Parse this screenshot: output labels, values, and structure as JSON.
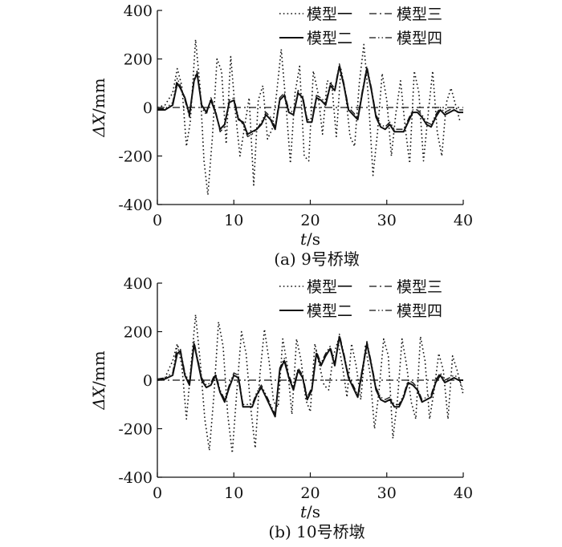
{
  "chart_data": [
    {
      "type": "line",
      "caption": "(a) 9号桥墩",
      "xlabel_var": "t",
      "xlabel_unit": "/s",
      "ylabel_var": "ΔX",
      "ylabel_unit": "/mm",
      "xlim": [
        0,
        40
      ],
      "ylim": [
        -400,
        400
      ],
      "xticks": [
        0,
        10,
        20,
        30,
        40
      ],
      "yticks": [
        -400,
        -200,
        0,
        200,
        400
      ],
      "grid": false,
      "legend_position": "top-right",
      "series": [
        {
          "name": "模型一",
          "style": "dotted",
          "x": [
            0,
            1,
            2,
            2.6,
            3.2,
            3.8,
            4.3,
            5,
            5.6,
            6.1,
            6.6,
            7.2,
            7.8,
            8.4,
            9,
            9.6,
            10.2,
            10.8,
            11.4,
            12,
            12.6,
            13.2,
            13.8,
            14.4,
            15,
            15.6,
            16.2,
            16.8,
            17.4,
            18,
            18.6,
            19.2,
            19.8,
            20.4,
            21,
            21.6,
            22.2,
            22.8,
            23.4,
            24,
            24.6,
            25.2,
            25.8,
            26.4,
            27,
            27.6,
            28.2,
            28.8,
            29.4,
            30,
            30.6,
            31.2,
            31.8,
            32.4,
            33,
            33.6,
            34.2,
            34.8,
            35.4,
            36,
            36.6,
            37.2,
            37.8,
            38.4,
            39,
            39.6
          ],
          "y": [
            0,
            10,
            60,
            160,
            90,
            -160,
            -60,
            280,
            80,
            -220,
            -360,
            -120,
            200,
            150,
            -150,
            210,
            -20,
            -200,
            -80,
            40,
            -320,
            30,
            90,
            -130,
            -90,
            60,
            240,
            20,
            -230,
            60,
            170,
            -200,
            -220,
            150,
            60,
            -110,
            110,
            100,
            -120,
            160,
            60,
            -120,
            -160,
            100,
            260,
            40,
            -280,
            -100,
            140,
            30,
            -200,
            -20,
            110,
            -80,
            -230,
            150,
            60,
            -220,
            -30,
            150,
            -100,
            -200,
            20,
            80,
            10,
            -60
          ]
        },
        {
          "name": "模型二",
          "style": "solid",
          "x": [
            0,
            1,
            2,
            2.6,
            3,
            3.6,
            4.2,
            4.8,
            5.2,
            5.8,
            6.4,
            7,
            7.6,
            8.2,
            8.8,
            9.4,
            10,
            10.6,
            11.2,
            11.8,
            12.4,
            13,
            13.6,
            14.2,
            14.8,
            15.4,
            16,
            16.6,
            17.2,
            17.8,
            18.4,
            19,
            19.6,
            20.2,
            20.8,
            21.4,
            22,
            22.6,
            23.2,
            23.8,
            24.4,
            25,
            25.6,
            26.2,
            26.8,
            27.4,
            28,
            28.6,
            29.2,
            29.8,
            30.4,
            31,
            31.6,
            32.2,
            32.8,
            33.4,
            34,
            34.6,
            35.2,
            35.8,
            36.4,
            37,
            37.6,
            38.2,
            38.8,
            39.4,
            40
          ],
          "y": [
            -10,
            -10,
            10,
            100,
            80,
            40,
            -30,
            110,
            140,
            10,
            -20,
            30,
            -20,
            -90,
            -70,
            20,
            30,
            -50,
            -60,
            -110,
            -100,
            -90,
            -70,
            -30,
            -50,
            -90,
            30,
            50,
            -20,
            -30,
            60,
            40,
            -60,
            -60,
            40,
            30,
            10,
            90,
            70,
            170,
            90,
            -10,
            -30,
            -50,
            60,
            160,
            70,
            -40,
            -80,
            -90,
            -70,
            -100,
            -100,
            -100,
            -60,
            -20,
            -20,
            -40,
            -70,
            -80,
            -40,
            -10,
            -30,
            -20,
            -10,
            -20,
            -20
          ]
        },
        {
          "name": "模型三",
          "style": "dashdot",
          "x": [
            0,
            40
          ],
          "y": [
            0,
            0
          ]
        },
        {
          "name": "模型四",
          "style": "dashdotdot",
          "x": [
            0,
            1,
            2,
            2.6,
            3,
            3.6,
            4.2,
            4.8,
            5.2,
            5.8,
            6.4,
            7,
            7.6,
            8.2,
            8.8,
            9.4,
            10,
            10.6,
            11.2,
            11.8,
            12.4,
            13,
            13.6,
            14.2,
            14.8,
            15.4,
            16,
            16.6,
            17.2,
            17.8,
            18.4,
            19,
            19.6,
            20.2,
            20.8,
            21.4,
            22,
            22.6,
            23.2,
            23.8,
            24.4,
            25,
            25.6,
            26.2,
            26.8,
            27.4,
            28,
            28.6,
            29.2,
            29.8,
            30.4,
            31,
            31.6,
            32.2,
            32.8,
            33.4,
            34,
            34.6,
            35.2,
            35.8,
            36.4,
            37,
            37.6,
            38.2,
            38.8,
            39.4,
            40
          ],
          "y": [
            -5,
            -5,
            20,
            120,
            90,
            30,
            -40,
            120,
            150,
            0,
            -30,
            40,
            -10,
            -100,
            -80,
            30,
            40,
            -40,
            -70,
            -120,
            -110,
            -90,
            -60,
            -20,
            -40,
            -80,
            40,
            60,
            -10,
            -20,
            70,
            50,
            -50,
            -50,
            50,
            40,
            20,
            100,
            80,
            180,
            100,
            0,
            -20,
            -40,
            70,
            170,
            80,
            -30,
            -70,
            -80,
            -60,
            -90,
            -90,
            -90,
            -50,
            -10,
            -10,
            -30,
            -60,
            -70,
            -30,
            0,
            -20,
            -10,
            0,
            -10,
            -10
          ]
        }
      ]
    },
    {
      "type": "line",
      "caption": "(b) 10号桥墩",
      "xlabel_var": "t",
      "xlabel_unit": "/s",
      "ylabel_var": "ΔX",
      "ylabel_unit": "/mm",
      "xlim": [
        0,
        40
      ],
      "ylim": [
        -400,
        400
      ],
      "xticks": [
        0,
        10,
        20,
        30,
        40
      ],
      "yticks": [
        -400,
        -200,
        0,
        200,
        400
      ],
      "grid": false,
      "legend_position": "top-right",
      "series": [
        {
          "name": "模型一",
          "style": "dotted",
          "x": [
            0,
            1,
            2,
            2.6,
            3.2,
            3.8,
            4.4,
            5,
            5.6,
            6.2,
            6.8,
            7.4,
            8,
            8.6,
            9.2,
            9.8,
            10.4,
            11,
            11.6,
            12.2,
            12.8,
            13.4,
            14,
            14.6,
            15.2,
            15.8,
            16.4,
            17,
            17.6,
            18.2,
            18.8,
            19.4,
            20,
            20.6,
            21.2,
            21.8,
            22.4,
            23,
            23.6,
            24.2,
            24.8,
            25.4,
            26,
            26.6,
            27.2,
            27.8,
            28.4,
            29,
            29.6,
            30.2,
            30.8,
            31.4,
            32,
            32.6,
            33.2,
            33.8,
            34.4,
            35,
            35.6,
            36.2,
            36.8,
            37.4,
            38,
            38.6,
            39.2,
            40
          ],
          "y": [
            0,
            10,
            80,
            150,
            60,
            -160,
            60,
            270,
            80,
            -160,
            -290,
            -60,
            240,
            140,
            -140,
            -300,
            -40,
            200,
            110,
            -110,
            -280,
            20,
            210,
            80,
            -90,
            -110,
            170,
            60,
            -140,
            170,
            80,
            -80,
            -130,
            150,
            60,
            -20,
            -40,
            100,
            160,
            60,
            -70,
            150,
            60,
            -80,
            140,
            30,
            -200,
            -40,
            170,
            100,
            -240,
            -80,
            170,
            60,
            -90,
            -160,
            180,
            80,
            -160,
            -40,
            110,
            40,
            -160,
            100,
            40,
            -60
          ]
        },
        {
          "name": "模型二",
          "style": "solid",
          "x": [
            0,
            1,
            2,
            2.6,
            3,
            3.6,
            4.2,
            4.8,
            5.2,
            5.8,
            6.4,
            7,
            7.6,
            8.2,
            8.8,
            9.4,
            10,
            10.6,
            11.2,
            11.8,
            12.4,
            13,
            13.6,
            14.2,
            14.8,
            15.4,
            16,
            16.6,
            17.2,
            17.8,
            18.4,
            19,
            19.6,
            20.2,
            20.8,
            21.4,
            22,
            22.6,
            23.2,
            23.8,
            24.4,
            25,
            25.6,
            26.2,
            26.8,
            27.4,
            28,
            28.6,
            29.2,
            29.8,
            30.4,
            31,
            31.6,
            32.2,
            32.8,
            33.4,
            34,
            34.6,
            35.2,
            35.8,
            36.4,
            37,
            37.6,
            38.2,
            38.8,
            39.4,
            40
          ],
          "y": [
            0,
            5,
            20,
            110,
            120,
            20,
            -20,
            150,
            90,
            0,
            -30,
            -20,
            20,
            -50,
            -90,
            -30,
            20,
            10,
            -110,
            -110,
            -110,
            -60,
            -30,
            -70,
            -110,
            -150,
            40,
            80,
            10,
            -40,
            40,
            10,
            -80,
            -40,
            110,
            60,
            100,
            130,
            60,
            180,
            100,
            10,
            -30,
            -70,
            40,
            150,
            60,
            -40,
            -80,
            -90,
            -80,
            -110,
            -110,
            -70,
            -10,
            -20,
            -40,
            -90,
            -80,
            -70,
            -10,
            20,
            -10,
            0,
            10,
            0,
            0
          ]
        },
        {
          "name": "模型三",
          "style": "dashdot",
          "x": [
            0,
            40
          ],
          "y": [
            0,
            0
          ]
        },
        {
          "name": "模型四",
          "style": "dashdotdot",
          "x": [
            0,
            1,
            2,
            2.6,
            3,
            3.6,
            4.2,
            4.8,
            5.2,
            5.8,
            6.4,
            7,
            7.6,
            8.2,
            8.8,
            9.4,
            10,
            10.6,
            11.2,
            11.8,
            12.4,
            13,
            13.6,
            14.2,
            14.8,
            15.4,
            16,
            16.6,
            17.2,
            17.8,
            18.4,
            19,
            19.6,
            20.2,
            20.8,
            21.4,
            22,
            22.6,
            23.2,
            23.8,
            24.4,
            25,
            25.6,
            26.2,
            26.8,
            27.4,
            28,
            28.6,
            29.2,
            29.8,
            30.4,
            31,
            31.6,
            32.2,
            32.8,
            33.4,
            34,
            34.6,
            35.2,
            35.8,
            36.4,
            37,
            37.6,
            38.2,
            38.8,
            39.4,
            40
          ],
          "y": [
            5,
            10,
            30,
            140,
            130,
            30,
            -10,
            160,
            100,
            10,
            -20,
            -10,
            30,
            -40,
            -80,
            -20,
            30,
            20,
            -100,
            -100,
            -100,
            -50,
            -20,
            -60,
            -100,
            -140,
            50,
            90,
            20,
            -30,
            50,
            20,
            -70,
            -30,
            120,
            70,
            110,
            140,
            70,
            190,
            110,
            20,
            -20,
            -60,
            50,
            160,
            70,
            -30,
            -70,
            -80,
            -70,
            -100,
            -100,
            -60,
            0,
            -10,
            -30,
            -80,
            -70,
            -60,
            0,
            30,
            0,
            10,
            20,
            10,
            -40
          ]
        }
      ]
    }
  ]
}
